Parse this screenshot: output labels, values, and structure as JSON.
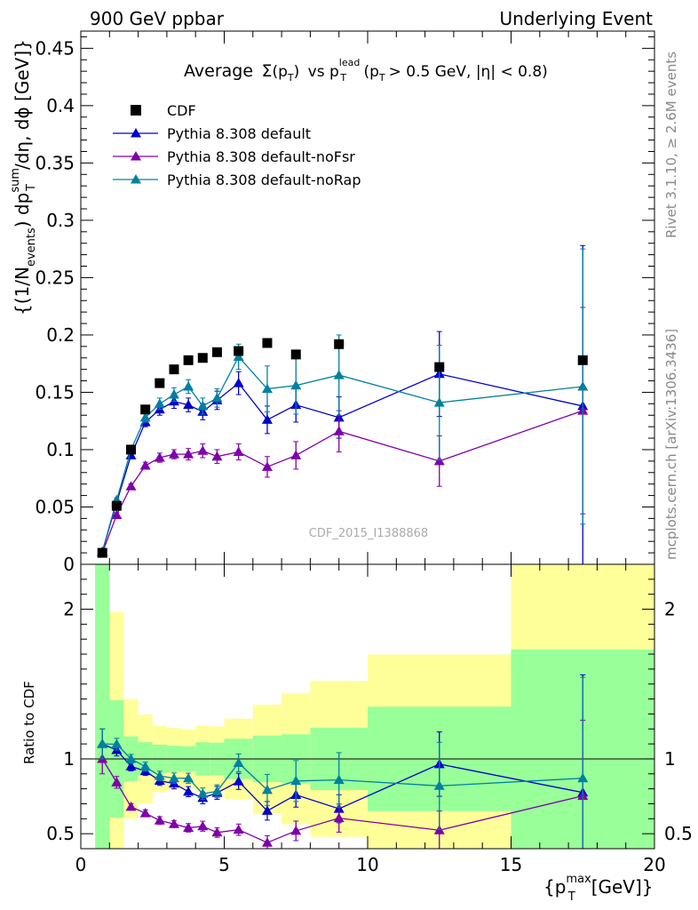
{
  "header": {
    "left": "900 GeV ppbar",
    "right": "Underlying Event"
  },
  "plot_title": {
    "prefix": "Average",
    "sigma": "Σ",
    "pt_paren": "(p",
    "pt_sub": "T",
    "pt_close": ")",
    "vs": "vs p",
    "lead_sup": "lead",
    "lead_sub": "T",
    "cut_open": "(p",
    "cut_sub": "T",
    "cut_rest": "> 0.5 GeV, |η| < 0.8)"
  },
  "side_labels": {
    "rivet": "Rivet 3.1.10, ≥ 2.6M events",
    "mcplots": "mcplots.cern.ch [arXiv:1306.3436]"
  },
  "watermark": "CDF_2015_I1388868",
  "ylabel_main": {
    "p1": "{(1/N",
    "p1_sub": "events",
    "p2": ") dp",
    "p2_sup": "sum",
    "p2_sub": "T",
    "p3": "/dη, dϕ [GeV]}"
  },
  "ylabel_ratio": "Ratio to CDF",
  "xlabel": {
    "p1": "{p",
    "p1_sup": "max",
    "p1_sub": "T",
    "p2": "[GeV]}"
  },
  "colors": {
    "data": "#000000",
    "default": "#0000cc",
    "noFsr": "#7f00aa",
    "noRap": "#0080a0",
    "band_inner": "#99ff99",
    "band_outer": "#ffff99"
  },
  "chart_data": {
    "type": "scatter",
    "main": {
      "xlim": [
        0,
        20
      ],
      "ylim": [
        0,
        0.465
      ],
      "yticks": [
        0,
        0.05,
        0.1,
        0.15,
        0.2,
        0.25,
        0.3,
        0.35,
        0.4,
        0.45
      ],
      "ytick_labels": [
        "0",
        "0.05",
        "0.1",
        "0.15",
        "0.2",
        "0.25",
        "0.3",
        "0.35",
        "0.4",
        "0.45"
      ]
    },
    "ratio": {
      "xlim": [
        0,
        20
      ],
      "ylim": [
        0.4,
        2.3
      ],
      "yticks": [
        0.5,
        1,
        2
      ],
      "ytick_labels": [
        "0.5",
        "1",
        "2"
      ]
    },
    "xticks": [
      0,
      5,
      10,
      15,
      20
    ],
    "xtick_labels": [
      "0",
      "5",
      "10",
      "15",
      "20"
    ],
    "legend": [
      {
        "key": "data",
        "label": "CDF"
      },
      {
        "key": "default",
        "label": "Pythia 8.308 default"
      },
      {
        "key": "noFsr",
        "label": "Pythia 8.308 default-noFsr"
      },
      {
        "key": "noRap",
        "label": "Pythia 8.308 default-noRap"
      }
    ],
    "data": {
      "name": "CDF",
      "x": [
        0.75,
        1.25,
        1.75,
        2.25,
        2.75,
        3.25,
        3.75,
        4.25,
        4.75,
        5.5,
        6.5,
        7.5,
        9.0,
        12.5,
        17.5
      ],
      "xlo": [
        0.5,
        1.0,
        1.5,
        2.0,
        2.5,
        3.0,
        3.5,
        4.0,
        4.5,
        5.0,
        6.0,
        7.0,
        8.0,
        10.0,
        15.0
      ],
      "xhi": [
        1.0,
        1.5,
        2.0,
        2.5,
        3.0,
        3.5,
        4.0,
        4.5,
        5.0,
        6.0,
        7.0,
        8.0,
        10.0,
        15.0,
        20.0
      ],
      "y": [
        0.01,
        0.051,
        0.1,
        0.135,
        0.158,
        0.17,
        0.178,
        0.18,
        0.185,
        0.186,
        0.193,
        0.183,
        0.192,
        0.172,
        0.178
      ],
      "stat": [
        0.03,
        0.02,
        0.015,
        0.015,
        0.015,
        0.015,
        0.015,
        0.02,
        0.02,
        0.025,
        0.03,
        0.03,
        0.04,
        0.06,
        0.13
      ],
      "total": [
        0.08,
        0.05,
        0.04,
        0.04,
        0.035,
        0.035,
        0.035,
        0.04,
        0.04,
        0.05,
        0.07,
        0.08,
        0.1,
        0.12,
        0.3
      ]
    },
    "series": [
      {
        "key": "default",
        "name": "Pythia 8.308 default",
        "x": [
          0.75,
          1.25,
          1.75,
          2.25,
          2.75,
          3.25,
          3.75,
          4.25,
          4.75,
          5.5,
          6.5,
          7.5,
          9.0,
          12.5,
          17.5
        ],
        "y": [
          0.011,
          0.054,
          0.095,
          0.124,
          0.135,
          0.142,
          0.139,
          0.133,
          0.143,
          0.158,
          0.126,
          0.139,
          0.128,
          0.166,
          0.138
        ],
        "yerr": [
          0.001,
          0.002,
          0.003,
          0.004,
          0.005,
          0.006,
          0.006,
          0.007,
          0.008,
          0.01,
          0.012,
          0.015,
          0.018,
          0.037,
          0.14
        ]
      },
      {
        "key": "noFsr",
        "name": "Pythia 8.308 default-noFsr",
        "x": [
          0.75,
          1.25,
          1.75,
          2.25,
          2.75,
          3.25,
          3.75,
          4.25,
          4.75,
          5.5,
          6.5,
          7.5,
          9.0,
          12.5,
          17.5
        ],
        "y": [
          0.01,
          0.043,
          0.068,
          0.086,
          0.093,
          0.096,
          0.096,
          0.099,
          0.094,
          0.098,
          0.085,
          0.095,
          0.116,
          0.09,
          0.134
        ],
        "yerr": [
          0.001,
          0.002,
          0.002,
          0.003,
          0.004,
          0.004,
          0.005,
          0.006,
          0.006,
          0.007,
          0.009,
          0.012,
          0.018,
          0.022,
          0.09
        ]
      },
      {
        "key": "noRap",
        "name": "Pythia 8.308 default-noRap",
        "x": [
          0.75,
          1.25,
          1.75,
          2.25,
          2.75,
          3.25,
          3.75,
          4.25,
          4.75,
          5.5,
          6.5,
          7.5,
          9.0,
          12.5,
          17.5
        ],
        "y": [
          0.011,
          0.056,
          0.1,
          0.128,
          0.14,
          0.148,
          0.155,
          0.138,
          0.145,
          0.181,
          0.153,
          0.156,
          0.165,
          0.141,
          0.155
        ],
        "yerr": [
          0.001,
          0.002,
          0.003,
          0.004,
          0.005,
          0.006,
          0.006,
          0.007,
          0.008,
          0.011,
          0.02,
          0.025,
          0.035,
          0.05,
          0.12
        ]
      }
    ]
  }
}
